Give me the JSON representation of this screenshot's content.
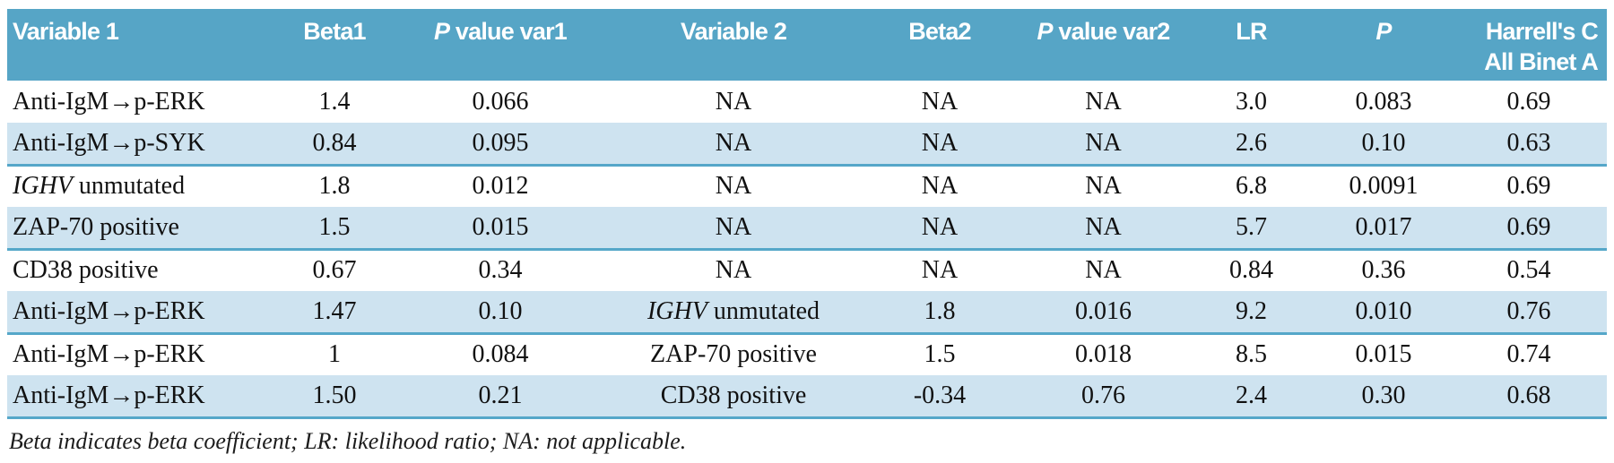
{
  "colors": {
    "header_bg": "#56a5c6",
    "shaded_row_bg": "#cee3f0",
    "separator_line": "#55a7c9",
    "header_text": "#ffffff",
    "body_text": "#111111"
  },
  "table": {
    "header": {
      "columns": [
        {
          "align": "left",
          "segments": [
            {
              "text": "Variable 1"
            }
          ]
        },
        {
          "align": "center",
          "segments": [
            {
              "text": "Beta1"
            }
          ]
        },
        {
          "align": "center",
          "segments": [
            {
              "text": "P",
              "italic": true
            },
            {
              "text": " value var1"
            }
          ]
        },
        {
          "align": "center",
          "segments": [
            {
              "text": "Variable 2"
            }
          ]
        },
        {
          "align": "center",
          "segments": [
            {
              "text": "Beta2"
            }
          ]
        },
        {
          "align": "center",
          "segments": [
            {
              "text": "P",
              "italic": true
            },
            {
              "text": " value var2"
            }
          ]
        },
        {
          "align": "center",
          "segments": [
            {
              "text": "LR"
            }
          ]
        },
        {
          "align": "center",
          "segments": [
            {
              "text": "P",
              "italic": true
            }
          ]
        },
        {
          "align": "right",
          "segments": [
            {
              "text": "Harrell's C"
            },
            {
              "text": "All Binet A",
              "line2": true
            }
          ]
        }
      ]
    },
    "rows": [
      {
        "shaded": false,
        "cells": [
          [
            {
              "text": "Anti-IgM→p-ERK"
            }
          ],
          [
            {
              "text": "1.4"
            }
          ],
          [
            {
              "text": "0.066"
            }
          ],
          [
            {
              "text": "NA"
            }
          ],
          [
            {
              "text": "NA"
            }
          ],
          [
            {
              "text": "NA"
            }
          ],
          [
            {
              "text": "3.0"
            }
          ],
          [
            {
              "text": "0.083"
            }
          ],
          [
            {
              "text": "0.69"
            }
          ]
        ]
      },
      {
        "shaded": true,
        "cells": [
          [
            {
              "text": "Anti-IgM→p-SYK"
            }
          ],
          [
            {
              "text": "0.84"
            }
          ],
          [
            {
              "text": "0.095"
            }
          ],
          [
            {
              "text": "NA"
            }
          ],
          [
            {
              "text": "NA"
            }
          ],
          [
            {
              "text": "NA"
            }
          ],
          [
            {
              "text": "2.6"
            }
          ],
          [
            {
              "text": "0.10"
            }
          ],
          [
            {
              "text": "0.63"
            }
          ]
        ]
      },
      {
        "shaded": false,
        "cells": [
          [
            {
              "text": "IGHV",
              "italic": true
            },
            {
              "text": " unmutated"
            }
          ],
          [
            {
              "text": "1.8"
            }
          ],
          [
            {
              "text": "0.012"
            }
          ],
          [
            {
              "text": "NA"
            }
          ],
          [
            {
              "text": "NA"
            }
          ],
          [
            {
              "text": "NA"
            }
          ],
          [
            {
              "text": "6.8"
            }
          ],
          [
            {
              "text": "0.0091"
            }
          ],
          [
            {
              "text": "0.69"
            }
          ]
        ]
      },
      {
        "shaded": true,
        "cells": [
          [
            {
              "text": "ZAP-70 positive"
            }
          ],
          [
            {
              "text": "1.5"
            }
          ],
          [
            {
              "text": "0.015"
            }
          ],
          [
            {
              "text": "NA"
            }
          ],
          [
            {
              "text": "NA"
            }
          ],
          [
            {
              "text": "NA"
            }
          ],
          [
            {
              "text": "5.7"
            }
          ],
          [
            {
              "text": "0.017"
            }
          ],
          [
            {
              "text": "0.69"
            }
          ]
        ]
      },
      {
        "shaded": false,
        "cells": [
          [
            {
              "text": "CD38 positive"
            }
          ],
          [
            {
              "text": "0.67"
            }
          ],
          [
            {
              "text": "0.34"
            }
          ],
          [
            {
              "text": "NA"
            }
          ],
          [
            {
              "text": "NA"
            }
          ],
          [
            {
              "text": "NA"
            }
          ],
          [
            {
              "text": "0.84"
            }
          ],
          [
            {
              "text": "0.36"
            }
          ],
          [
            {
              "text": "0.54"
            }
          ]
        ]
      },
      {
        "shaded": true,
        "cells": [
          [
            {
              "text": "Anti-IgM→p-ERK"
            }
          ],
          [
            {
              "text": "1.47"
            }
          ],
          [
            {
              "text": "0.10"
            }
          ],
          [
            {
              "text": "IGHV",
              "italic": true
            },
            {
              "text": " unmutated"
            }
          ],
          [
            {
              "text": "1.8"
            }
          ],
          [
            {
              "text": "0.016"
            }
          ],
          [
            {
              "text": "9.2"
            }
          ],
          [
            {
              "text": "0.010"
            }
          ],
          [
            {
              "text": "0.76"
            }
          ]
        ]
      },
      {
        "shaded": false,
        "cells": [
          [
            {
              "text": "Anti-IgM→p-ERK"
            }
          ],
          [
            {
              "text": "1"
            }
          ],
          [
            {
              "text": "0.084"
            }
          ],
          [
            {
              "text": "ZAP-70 positive"
            }
          ],
          [
            {
              "text": "1.5"
            }
          ],
          [
            {
              "text": "0.018"
            }
          ],
          [
            {
              "text": "8.5"
            }
          ],
          [
            {
              "text": "0.015"
            }
          ],
          [
            {
              "text": "0.74"
            }
          ]
        ]
      },
      {
        "shaded": true,
        "cells": [
          [
            {
              "text": "Anti-IgM→p-ERK"
            }
          ],
          [
            {
              "text": "1.50"
            }
          ],
          [
            {
              "text": "0.21"
            }
          ],
          [
            {
              "text": "CD38 positive"
            }
          ],
          [
            {
              "text": "-0.34"
            }
          ],
          [
            {
              "text": "0.76"
            }
          ],
          [
            {
              "text": "2.4"
            }
          ],
          [
            {
              "text": "0.30"
            }
          ],
          [
            {
              "text": "0.68"
            }
          ]
        ]
      }
    ],
    "footnote": "Beta indicates beta coefficient; LR: likelihood ratio; NA: not applicable."
  }
}
